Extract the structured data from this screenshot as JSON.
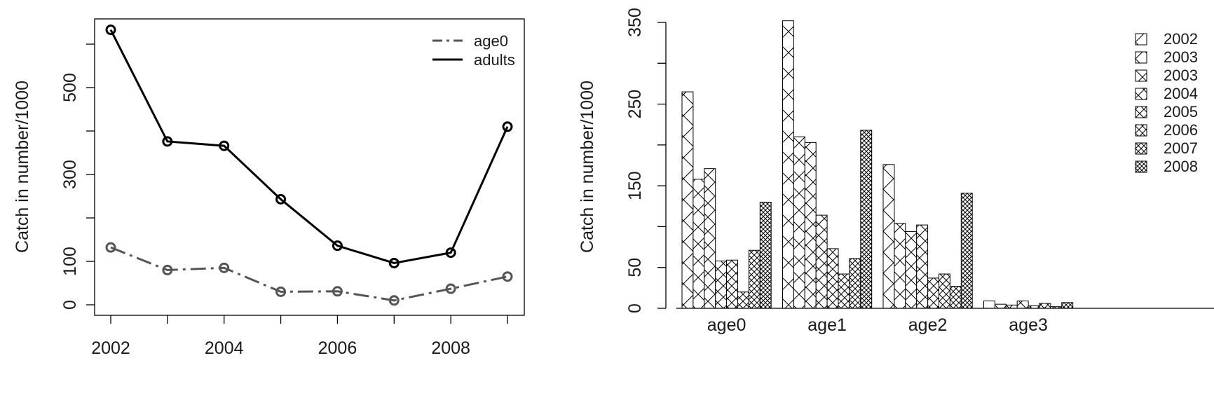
{
  "chart_data": [
    {
      "type": "line",
      "title": "",
      "xlabel": "",
      "ylabel": "Catch in number/1000",
      "xlim": [
        2002,
        2009
      ],
      "ylim": [
        0,
        680
      ],
      "grid": false,
      "legend_position": "top-right",
      "x": [
        2002,
        2003,
        2004,
        2005,
        2006,
        2007,
        2008,
        2009
      ],
      "x_tick_labels": [
        {
          "value": 2002,
          "label": "2002"
        },
        {
          "value": 2004,
          "label": "2004"
        },
        {
          "value": 2006,
          "label": "2006"
        },
        {
          "value": 2008,
          "label": "2008"
        }
      ],
      "y_tick_labels": [
        {
          "value": 0,
          "label": "0"
        },
        {
          "value": 100,
          "label": "100"
        },
        {
          "value": 300,
          "label": "300"
        },
        {
          "value": 500,
          "label": "500"
        }
      ],
      "series": [
        {
          "name": "age0",
          "values": [
            132,
            80,
            85,
            30,
            31,
            10,
            37,
            65
          ],
          "color": "#555555",
          "line_style": "dashed"
        },
        {
          "name": "adults",
          "values": [
            633,
            376,
            366,
            243,
            136,
            96,
            120,
            410
          ],
          "color": "#000000",
          "line_style": "solid"
        }
      ]
    },
    {
      "type": "bar",
      "title": "",
      "xlabel": "",
      "ylabel": "Catch in number/1000",
      "ylim": [
        0,
        350
      ],
      "grid": false,
      "legend_position": "top-right",
      "categories": [
        "age0",
        "age1",
        "age2",
        "age3"
      ],
      "y_tick_labels": [
        {
          "value": 0,
          "label": "0"
        },
        {
          "value": 50,
          "label": "50"
        },
        {
          "value": 150,
          "label": "150"
        },
        {
          "value": 250,
          "label": "250"
        },
        {
          "value": 350,
          "label": "350"
        }
      ],
      "series": [
        {
          "name": "2002",
          "values": [
            265,
            352,
            176,
            9
          ]
        },
        {
          "name": "2003",
          "values": [
            158,
            210,
            104,
            5
          ]
        },
        {
          "name": "2003",
          "values": [
            171,
            203,
            94,
            4
          ]
        },
        {
          "name": "2004",
          "values": [
            58,
            114,
            102,
            9
          ]
        },
        {
          "name": "2005",
          "values": [
            59,
            73,
            37,
            3
          ]
        },
        {
          "name": "2006",
          "values": [
            20,
            42,
            42,
            6
          ]
        },
        {
          "name": "2007",
          "values": [
            71,
            61,
            27,
            2
          ]
        },
        {
          "name": "2008",
          "values": [
            130,
            218,
            141,
            7
          ]
        }
      ]
    }
  ]
}
